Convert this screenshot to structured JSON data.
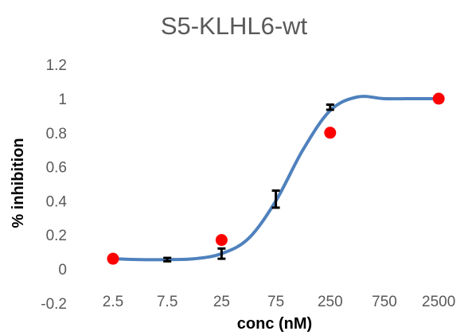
{
  "chart_data": {
    "type": "scatter",
    "title": "S5-KLHL6-wt",
    "xlabel": "conc (nM)",
    "ylabel": "% inhibition",
    "categories": [
      "2.5",
      "7.5",
      "25",
      "75",
      "250",
      "750",
      "2500"
    ],
    "ylim": [
      -0.2,
      1.2
    ],
    "yticks": [
      "-0.2",
      "0",
      "0.2",
      "0.4",
      "0.6",
      "0.8",
      "1",
      "1.2"
    ],
    "grid": false,
    "legend": "none",
    "series": [
      {
        "type": "scatter",
        "color": "#ff0000",
        "points": [
          {
            "x": "2.5",
            "y": 0.06
          },
          {
            "x": "25",
            "y": 0.17
          },
          {
            "x": "250",
            "y": 0.8
          },
          {
            "x": "2500",
            "y": 1.0
          }
        ]
      },
      {
        "type": "errorbar",
        "color": "#000000",
        "points": [
          {
            "x": "2.5",
            "y": 0.06,
            "err": 0.02
          },
          {
            "x": "7.5",
            "y": 0.055,
            "err": 0.01
          },
          {
            "x": "25",
            "y": 0.09,
            "err": 0.03
          },
          {
            "x": "75",
            "y": 0.41,
            "err": 0.05
          },
          {
            "x": "250",
            "y": 0.95,
            "err": 0.015
          }
        ]
      },
      {
        "type": "line",
        "color": "#4f81bd",
        "points": [
          {
            "x": 0.0,
            "y": 0.06
          },
          {
            "x": 0.5,
            "y": 0.055
          },
          {
            "x": 1.0,
            "y": 0.055
          },
          {
            "x": 1.5,
            "y": 0.06
          },
          {
            "x": 2.0,
            "y": 0.09
          },
          {
            "x": 2.5,
            "y": 0.18
          },
          {
            "x": 3.0,
            "y": 0.4
          },
          {
            "x": 3.5,
            "y": 0.7
          },
          {
            "x": 4.0,
            "y": 0.93
          },
          {
            "x": 4.5,
            "y": 1.01
          },
          {
            "x": 5.0,
            "y": 1.0
          },
          {
            "x": 5.5,
            "y": 1.0
          },
          {
            "x": 6.0,
            "y": 1.0
          }
        ]
      }
    ]
  }
}
